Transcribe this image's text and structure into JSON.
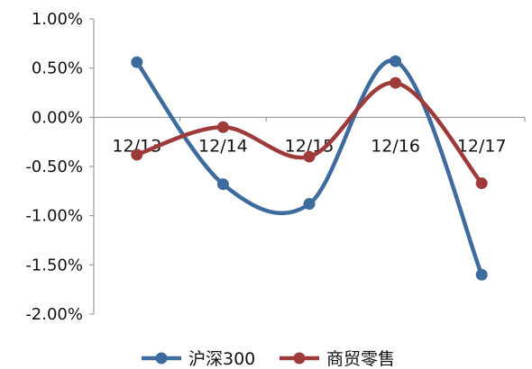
{
  "chart_data": {
    "type": "line",
    "title": "",
    "xlabel": "",
    "ylabel": "",
    "categories": [
      "12/13",
      "12/14",
      "12/15",
      "12/16",
      "12/17"
    ],
    "ylim": [
      -0.02,
      0.01
    ],
    "yticks": [
      0.01,
      0.005,
      0.0,
      -0.005,
      -0.01,
      -0.015,
      -0.02
    ],
    "ytick_labels": [
      "1.00%",
      "0.50%",
      "0.00%",
      "-0.50%",
      "-1.00%",
      "-1.50%",
      "-2.00%"
    ],
    "y_format": "percent",
    "grid": false,
    "smooth": true,
    "legend_position": "bottom",
    "series": [
      {
        "name": "沪深300",
        "color": "#3e6b9e",
        "values": [
          0.0056,
          -0.0068,
          -0.0088,
          0.0057,
          -0.016
        ]
      },
      {
        "name": "商贸零售",
        "color": "#9e3a39",
        "values": [
          -0.0038,
          -0.001,
          -0.004,
          0.0035,
          -0.0067
        ]
      }
    ]
  }
}
